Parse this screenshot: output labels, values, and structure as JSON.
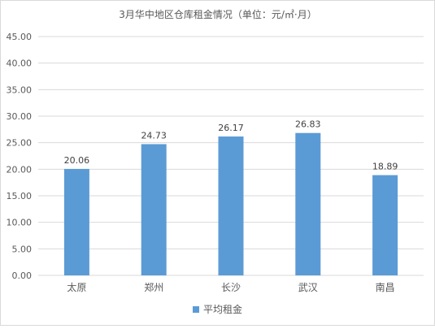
{
  "chart_data": {
    "type": "bar",
    "title": "3月华中地区仓库租金情况（单位：元/㎡·月）",
    "categories": [
      "太原",
      "郑州",
      "长沙",
      "武汉",
      "南昌"
    ],
    "series": [
      {
        "name": "平均租金",
        "values": [
          20.06,
          24.73,
          26.17,
          26.83,
          18.89
        ],
        "data_labels": [
          "20.06",
          "24.73",
          "26.17",
          "26.83",
          "18.89"
        ],
        "color": "#5b9bd5"
      }
    ],
    "ylim": [
      0,
      45
    ],
    "y_ticks": [
      "0.00",
      "5.00",
      "10.00",
      "15.00",
      "20.00",
      "25.00",
      "30.00",
      "35.00",
      "40.00",
      "45.00"
    ],
    "grid": true,
    "legend_position": "bottom",
    "colors": {
      "bar": "#5b9bd5",
      "grid": "#d9d9d9",
      "text": "#595959"
    }
  }
}
